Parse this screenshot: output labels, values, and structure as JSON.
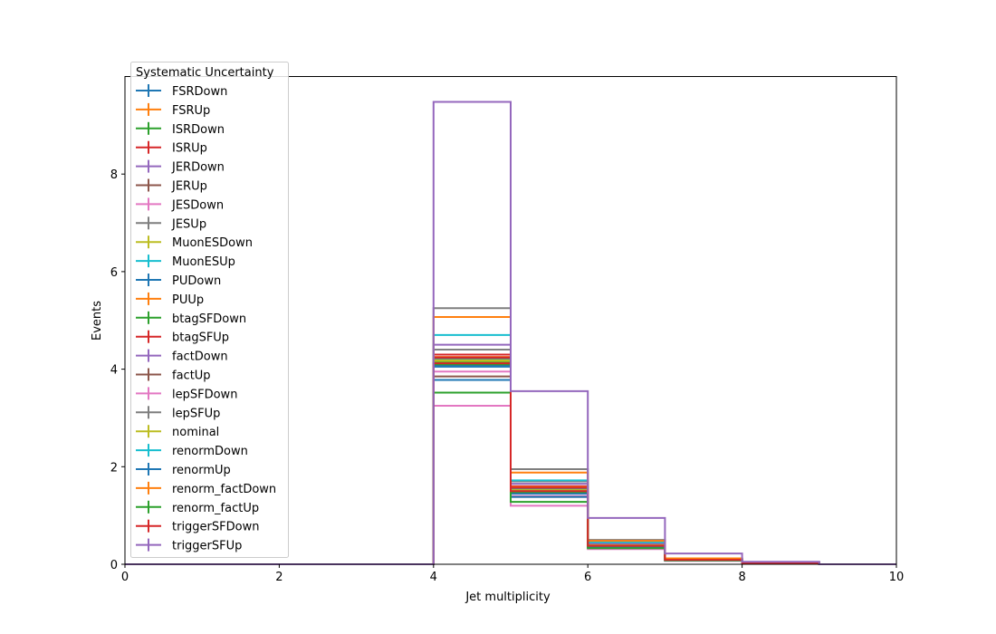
{
  "chart_data": {
    "type": "line",
    "xlabel": "Jet multiplicity",
    "ylabel": "Events",
    "xlim": [
      0,
      10
    ],
    "ylim": [
      0,
      10
    ],
    "x_ticks": [
      0,
      2,
      4,
      6,
      8,
      10
    ],
    "y_ticks": [
      0,
      2,
      4,
      6,
      8
    ],
    "bin_edges": [
      0,
      1,
      2,
      3,
      4,
      5,
      6,
      7,
      8,
      9,
      10
    ],
    "legend_title": "Systematic Uncertainty",
    "legend_position": "upper-left",
    "grid": false,
    "series": [
      {
        "name": "FSRDown",
        "color": "#1f77b4",
        "values": [
          0,
          0,
          0,
          0,
          4.08,
          1.45,
          0.35,
          0.09,
          0.02,
          0
        ]
      },
      {
        "name": "FSRUp",
        "color": "#ff7f0e",
        "values": [
          0,
          0,
          0,
          0,
          4.2,
          1.55,
          0.42,
          0.1,
          0.03,
          0
        ]
      },
      {
        "name": "ISRDown",
        "color": "#2ca02c",
        "values": [
          0,
          0,
          0,
          0,
          4.15,
          1.48,
          0.38,
          0.08,
          0.02,
          0
        ]
      },
      {
        "name": "ISRUp",
        "color": "#d62728",
        "values": [
          0,
          0,
          0,
          0,
          4.3,
          1.6,
          0.42,
          0.1,
          0.03,
          0
        ]
      },
      {
        "name": "JERDown",
        "color": "#9467bd",
        "values": [
          0,
          0,
          0,
          0,
          4.18,
          1.52,
          0.39,
          0.09,
          0.02,
          0
        ]
      },
      {
        "name": "JERUp",
        "color": "#8c564b",
        "values": [
          0,
          0,
          0,
          0,
          4.22,
          1.55,
          0.4,
          0.09,
          0.02,
          0
        ]
      },
      {
        "name": "JESDown",
        "color": "#e377c2",
        "values": [
          0,
          0,
          0,
          0,
          3.95,
          1.4,
          0.36,
          0.08,
          0.02,
          0
        ]
      },
      {
        "name": "JESUp",
        "color": "#7f7f7f",
        "values": [
          0,
          0,
          0,
          0,
          4.4,
          1.7,
          0.45,
          0.11,
          0.03,
          0
        ]
      },
      {
        "name": "MuonESDown",
        "color": "#bcbd22",
        "values": [
          0,
          0,
          0,
          0,
          4.17,
          1.52,
          0.39,
          0.09,
          0.02,
          0
        ]
      },
      {
        "name": "MuonESUp",
        "color": "#17becf",
        "values": [
          0,
          0,
          0,
          0,
          4.19,
          1.53,
          0.39,
          0.09,
          0.02,
          0
        ]
      },
      {
        "name": "PUDown",
        "color": "#1f77b4",
        "values": [
          0,
          0,
          0,
          0,
          4.05,
          1.45,
          0.37,
          0.09,
          0.02,
          0
        ]
      },
      {
        "name": "PUUp",
        "color": "#ff7f0e",
        "values": [
          0,
          0,
          0,
          0,
          4.25,
          1.58,
          0.41,
          0.1,
          0.03,
          0
        ]
      },
      {
        "name": "btagSFDown",
        "color": "#2ca02c",
        "values": [
          0,
          0,
          0,
          0,
          4.1,
          1.48,
          0.38,
          0.09,
          0.02,
          0
        ]
      },
      {
        "name": "btagSFUp",
        "color": "#d62728",
        "values": [
          0,
          0,
          0,
          0,
          4.24,
          1.57,
          0.4,
          0.1,
          0.03,
          0
        ]
      },
      {
        "name": "factDown",
        "color": "#9467bd",
        "values": [
          0,
          0,
          0,
          0,
          4.5,
          1.65,
          0.43,
          0.1,
          0.03,
          0
        ]
      },
      {
        "name": "factUp",
        "color": "#8c564b",
        "values": [
          0,
          0,
          0,
          0,
          3.85,
          1.38,
          0.35,
          0.08,
          0.02,
          0
        ]
      },
      {
        "name": "lepSFDown",
        "color": "#e377c2",
        "values": [
          0,
          0,
          0,
          0,
          3.25,
          1.2,
          0.31,
          0.07,
          0.02,
          0
        ]
      },
      {
        "name": "lepSFUp",
        "color": "#7f7f7f",
        "values": [
          0,
          0,
          0,
          0,
          5.25,
          1.95,
          0.5,
          0.12,
          0.04,
          0
        ]
      },
      {
        "name": "nominal",
        "color": "#bcbd22",
        "values": [
          0,
          0,
          0,
          0,
          4.18,
          1.52,
          0.39,
          0.09,
          0.02,
          0
        ]
      },
      {
        "name": "renormDown",
        "color": "#17becf",
        "values": [
          0,
          0,
          0,
          0,
          4.7,
          1.72,
          0.45,
          0.11,
          0.03,
          0
        ]
      },
      {
        "name": "renormUp",
        "color": "#1f77b4",
        "values": [
          0,
          0,
          0,
          0,
          3.78,
          1.38,
          0.34,
          0.08,
          0.02,
          0
        ]
      },
      {
        "name": "renorm_factDown",
        "color": "#ff7f0e",
        "values": [
          0,
          0,
          0,
          0,
          5.07,
          1.88,
          0.48,
          0.12,
          0.03,
          0
        ]
      },
      {
        "name": "renorm_factUp",
        "color": "#2ca02c",
        "values": [
          0,
          0,
          0,
          0,
          3.52,
          1.28,
          0.33,
          0.08,
          0.02,
          0
        ]
      },
      {
        "name": "triggerSFDown",
        "color": "#d62728",
        "values": [
          0,
          0,
          0,
          0,
          4.12,
          1.5,
          0.38,
          0.09,
          0.02,
          0
        ]
      },
      {
        "name": "triggerSFUp",
        "color": "#9467bd",
        "values": [
          0,
          0,
          0,
          0,
          9.48,
          3.55,
          0.95,
          0.22,
          0.05,
          0
        ]
      }
    ]
  }
}
